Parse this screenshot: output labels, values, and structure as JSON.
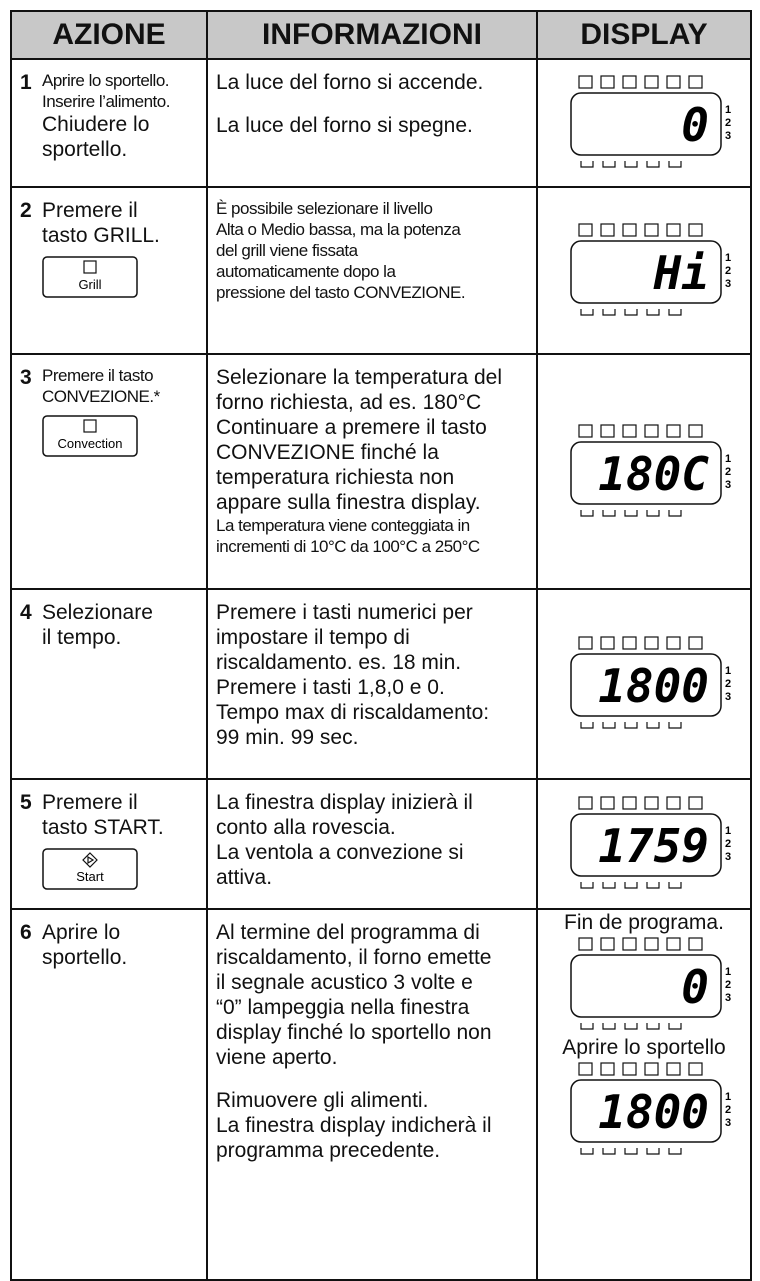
{
  "header": {
    "azione": "AZIONE",
    "informazioni": "INFORMAZIONI",
    "display": "DISPLAY"
  },
  "display_levels": [
    "1",
    "2",
    "3"
  ],
  "rows": [
    {
      "number": "1",
      "action": [
        "Aprire lo sportello.",
        "Inserire l’alimento.",
        "Chiudere lo",
        "sportello."
      ],
      "info": [
        [
          "La luce del forno si accende."
        ],
        [
          "La luce del forno si spegne."
        ]
      ],
      "displays": [
        {
          "reading": "0"
        }
      ]
    },
    {
      "number": "2",
      "action": [
        "Premere il",
        "tasto GRILL."
      ],
      "button": "Grill",
      "info": [
        [
          "È possibile selezionare il livello",
          "Alta o Medio bassa, ma la potenza",
          "del grill viene fissata",
          "automaticamente dopo la",
          "pressione del tasto CONVEZIONE."
        ]
      ],
      "displays": [
        {
          "reading": "Hi"
        }
      ]
    },
    {
      "number": "3",
      "action": [
        "Premere il tasto",
        "CONVEZIONE.*"
      ],
      "button": "Convection",
      "info": [
        [
          "Selezionare la temperatura del",
          "forno richiesta, ad es. 180°C",
          "Continuare a premere il tasto",
          "CONVEZIONE finché la",
          "temperatura richiesta non",
          "appare sulla finestra display.",
          "La temperatura viene conteggiata in",
          "incrementi di 10°C da 100°C a 250°C"
        ]
      ],
      "displays": [
        {
          "reading": "180C"
        }
      ]
    },
    {
      "number": "4",
      "action": [
        "Selezionare",
        "il tempo."
      ],
      "info": [
        [
          "Premere i tasti numerici per",
          "impostare il tempo di",
          "riscaldamento. es. 18 min.",
          "Premere i tasti 1,8,0 e 0.",
          "Tempo max di riscaldamento:",
          "99 min. 99 sec."
        ]
      ],
      "displays": [
        {
          "reading": "1800"
        }
      ]
    },
    {
      "number": "5",
      "action": [
        "Premere il",
        "tasto START."
      ],
      "button": "Start",
      "info": [
        [
          "La finestra display inizierà il",
          "conto alla rovescia.",
          "La ventola a convezione si",
          "attiva."
        ]
      ],
      "displays": [
        {
          "reading": "1759"
        }
      ]
    },
    {
      "number": "6",
      "action": [
        "Aprire lo",
        "sportello."
      ],
      "info": [
        [
          "Al termine del programma di",
          "riscaldamento, il forno emette",
          "il segnale acustico 3 volte e",
          "“0” lampeggia nella finestra",
          "display finché lo sportello non",
          "viene aperto."
        ],
        [
          "Rimuovere gli alimenti.",
          "La finestra display indicherà il",
          "programma precedente."
        ]
      ],
      "displays": [
        {
          "caption": "Fin de programa.",
          "reading": "0"
        },
        {
          "caption": "Aprire lo sportello",
          "reading": "1800"
        }
      ]
    }
  ]
}
